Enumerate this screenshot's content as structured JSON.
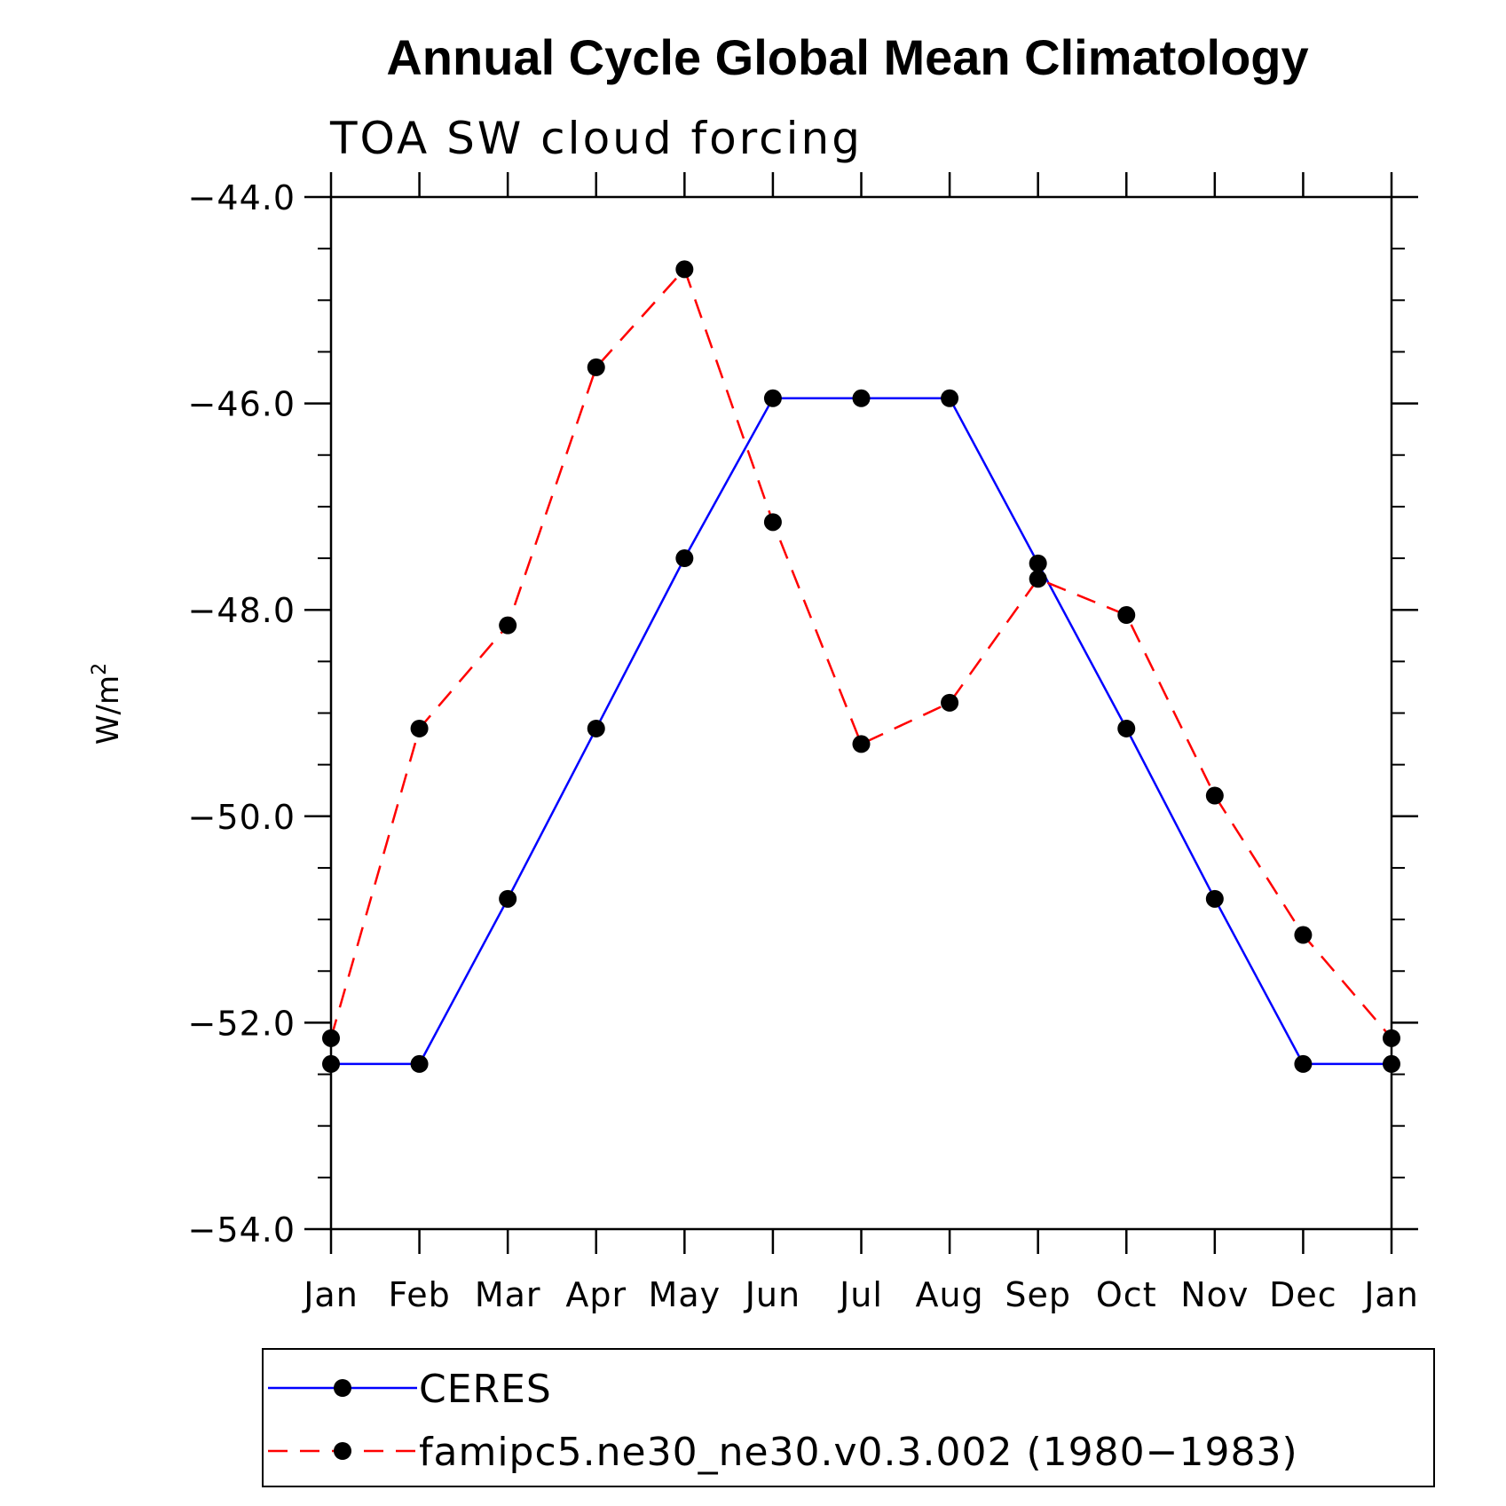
{
  "chart_data": {
    "type": "line",
    "title": "Annual Cycle Global Mean Climatology",
    "subtitle": "TOA SW cloud forcing",
    "ylabel": "W/m",
    "ylabel_sup": "2",
    "xlabel": "",
    "categories": [
      "Jan",
      "Feb",
      "Mar",
      "Apr",
      "May",
      "Jun",
      "Jul",
      "Aug",
      "Sep",
      "Oct",
      "Nov",
      "Dec",
      "Jan"
    ],
    "ylim": [
      -54.0,
      -44.0
    ],
    "yticks": [
      -44.0,
      -46.0,
      -48.0,
      -50.0,
      -52.0,
      -54.0
    ],
    "ytick_labels": [
      "−44.0",
      "−46.0",
      "−48.0",
      "−50.0",
      "−52.0",
      "−54.0"
    ],
    "y_minor_step": 0.5,
    "grid": false,
    "legend_position": "bottom",
    "series": [
      {
        "name": "CERES",
        "color": "#0000ff",
        "dash": "solid",
        "marker": "circle",
        "values": [
          -52.4,
          -52.4,
          -50.8,
          -49.15,
          -47.5,
          -45.95,
          -45.95,
          -45.95,
          -47.55,
          -49.15,
          -50.8,
          -52.4,
          -52.4
        ]
      },
      {
        "name": "famipc5.ne30_ne30.v0.3.002 (1980−1983)",
        "color": "#ff0000",
        "dash": "dashed",
        "marker": "circle",
        "values": [
          -52.15,
          -49.15,
          -48.15,
          -45.65,
          -44.7,
          -47.15,
          -49.3,
          -48.9,
          -47.7,
          -48.05,
          -49.8,
          -51.15,
          -52.15
        ]
      }
    ]
  }
}
